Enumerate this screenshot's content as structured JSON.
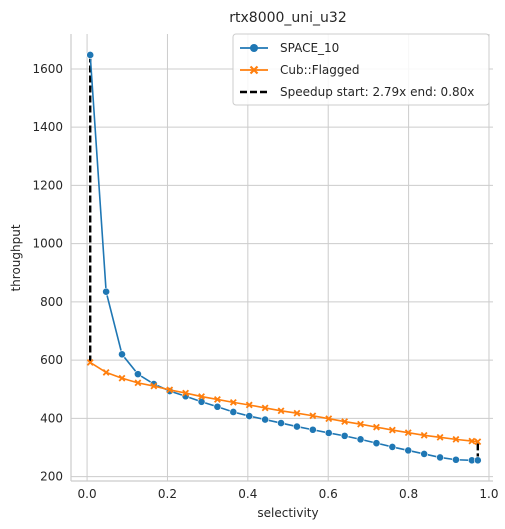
{
  "chart_data": {
    "type": "line",
    "title": "rtx8000_uni_u32",
    "xlabel": "selectivity",
    "ylabel": "throughput",
    "xlim": [
      -0.04,
      1.01
    ],
    "ylim": [
      185,
      1720
    ],
    "xticks": [
      0.0,
      0.2,
      0.4,
      0.6,
      0.8,
      1.0
    ],
    "xtick_labels": [
      "0.0",
      "0.2",
      "0.4",
      "0.6",
      "0.8",
      "1.0"
    ],
    "yticks": [
      200,
      400,
      600,
      800,
      1000,
      1200,
      1400,
      1600
    ],
    "ytick_labels": [
      "200",
      "400",
      "600",
      "800",
      "1000",
      "1200",
      "1400",
      "1600"
    ],
    "grid": true,
    "legend_position": "top-right",
    "series": [
      {
        "name": "SPACE_10",
        "color": "#1f77b4",
        "marker": "circle",
        "x": [
          0.0078,
          0.0474,
          0.0869,
          0.1265,
          0.1661,
          0.2056,
          0.2452,
          0.2848,
          0.3243,
          0.3639,
          0.4035,
          0.443,
          0.4826,
          0.5222,
          0.5617,
          0.6013,
          0.6409,
          0.6804,
          0.72,
          0.7596,
          0.7991,
          0.8387,
          0.8783,
          0.9178,
          0.9574,
          0.9722
        ],
        "y": [
          1648,
          835,
          620,
          552,
          518,
          494,
          476,
          457,
          440,
          422,
          408,
          396,
          384,
          372,
          361,
          350,
          340,
          328,
          315,
          302,
          290,
          278,
          266,
          258,
          256,
          256
        ]
      },
      {
        "name": "Cub::Flagged",
        "color": "#ff7f0e",
        "marker": "x",
        "x": [
          0.0078,
          0.0474,
          0.0869,
          0.1265,
          0.1661,
          0.2056,
          0.2452,
          0.2848,
          0.3243,
          0.3639,
          0.4035,
          0.443,
          0.4826,
          0.5222,
          0.5617,
          0.6013,
          0.6409,
          0.6804,
          0.72,
          0.7596,
          0.7991,
          0.8387,
          0.8783,
          0.9178,
          0.9574,
          0.9722
        ],
        "y": [
          592,
          558,
          538,
          522,
          511,
          498,
          487,
          475,
          465,
          455,
          446,
          436,
          426,
          418,
          409,
          399,
          389,
          380,
          370,
          360,
          351,
          342,
          335,
          328,
          322,
          320
        ]
      }
    ],
    "speedup": {
      "label": "Speedup start: 2.79x  end: 0.80x",
      "color": "#000000",
      "start_x": 0.0078,
      "start_y": [
        592,
        1648
      ],
      "end_x": 0.9722,
      "end_y": [
        256,
        320
      ]
    }
  }
}
